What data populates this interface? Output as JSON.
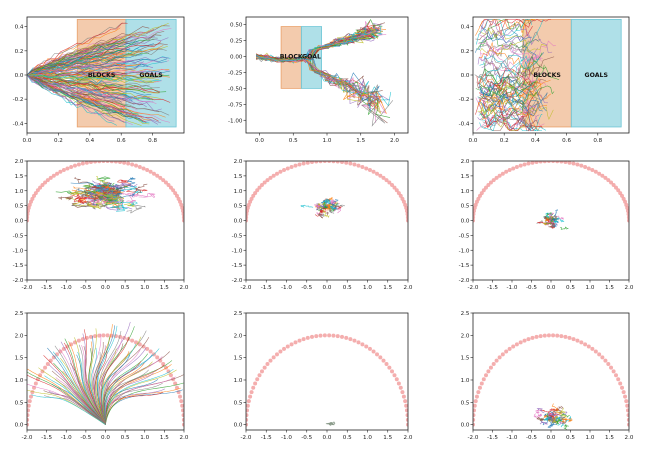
{
  "colors": {
    "blocks_zone": "#e9a06a",
    "goals_zone": "#6ec6d6",
    "target_markers": "#f2a0a0",
    "trajectory_palette": [
      "#1f77b4",
      "#ff7f0e",
      "#2ca02c",
      "#d62728",
      "#9467bd",
      "#8c564b",
      "#e377c2",
      "#7f7f7f",
      "#bcbd22",
      "#17becf"
    ],
    "collapsed_cluster": "#8a9a8a"
  },
  "chart_data": [
    {
      "id": "r1c1",
      "type": "line",
      "style": "fan",
      "xlim": [
        0.0,
        1.0
      ],
      "ylim": [
        -0.48,
        0.48
      ],
      "xticks": [
        "0.0",
        "0.2",
        "0.4",
        "0.6",
        "0.8"
      ],
      "xtick_values": [
        0,
        0.2,
        0.4,
        0.6,
        0.8
      ],
      "yticks": [
        "-0.4",
        "-0.2",
        "0.0",
        "0.2",
        "0.4"
      ],
      "ytick_values": [
        -0.4,
        -0.2,
        0,
        0.2,
        0.4
      ],
      "zones": [
        {
          "label": "BLOCKS",
          "x": [
            0.32,
            0.63
          ],
          "y": [
            -0.43,
            0.46
          ],
          "color": "blocks_zone"
        },
        {
          "label": "GOALS",
          "x": [
            0.63,
            0.95
          ],
          "y": [
            -0.43,
            0.46
          ],
          "color": "goals_zone"
        }
      ],
      "trajectories": {
        "count": 150,
        "start": [
          0.0,
          0.0
        ],
        "end_x_range": [
          0.55,
          0.92
        ],
        "end_y_range": [
          -0.42,
          0.44
        ]
      }
    },
    {
      "id": "r1c2",
      "type": "line",
      "style": "paths",
      "xlim": [
        -0.2,
        2.2
      ],
      "ylim": [
        -1.2,
        0.62
      ],
      "xticks": [
        "0.0",
        "0.5",
        "1.0",
        "1.5",
        "2.0"
      ],
      "xtick_values": [
        0,
        0.5,
        1,
        1.5,
        2
      ],
      "yticks": [
        "-1.00",
        "-0.75",
        "-0.50",
        "-0.25",
        "0.00",
        "0.25",
        "0.50"
      ],
      "ytick_values": [
        -1,
        -0.75,
        -0.5,
        -0.25,
        0,
        0.25,
        0.5
      ],
      "zones": [
        {
          "label": "BLOCK",
          "x": [
            0.32,
            0.62
          ],
          "y": [
            -0.5,
            0.47
          ],
          "color": "blocks_zone"
        },
        {
          "label": "GOAL",
          "x": [
            0.62,
            0.92
          ],
          "y": [
            -0.5,
            0.47
          ],
          "color": "goals_zone"
        }
      ],
      "trajectories": {
        "count": 60
      }
    },
    {
      "id": "r1c3",
      "type": "line",
      "style": "tangle",
      "xlim": [
        0.0,
        1.0
      ],
      "ylim": [
        -0.48,
        0.48
      ],
      "xticks": [
        "0.0",
        "0.2",
        "0.4",
        "0.6",
        "0.8"
      ],
      "xtick_values": [
        0,
        0.2,
        0.4,
        0.6,
        0.8
      ],
      "yticks": [
        "-0.4",
        "-0.2",
        "0.0",
        "0.2",
        "0.4"
      ],
      "ytick_values": [
        -0.4,
        -0.2,
        0,
        0.2,
        0.4
      ],
      "zones": [
        {
          "label": "BLOCKS",
          "x": [
            0.32,
            0.63
          ],
          "y": [
            -0.43,
            0.46
          ],
          "color": "blocks_zone"
        },
        {
          "label": "GOALS",
          "x": [
            0.63,
            0.95
          ],
          "y": [
            -0.43,
            0.46
          ],
          "color": "goals_zone"
        }
      ],
      "trajectories": {
        "count": 80
      }
    },
    {
      "id": "r2c1",
      "type": "line",
      "style": "cloud",
      "xlim": [
        -2.0,
        2.0
      ],
      "ylim": [
        -2.0,
        2.0
      ],
      "xticks": [
        "-2.0",
        "-1.5",
        "-1.0",
        "-0.5",
        "0.0",
        "0.5",
        "1.0",
        "1.5",
        "2.0"
      ],
      "xtick_values": [
        -2,
        -1.5,
        -1,
        -0.5,
        0,
        0.5,
        1,
        1.5,
        2
      ],
      "yticks": [
        "-2.0",
        "-1.5",
        "-1.0",
        "-0.5",
        "0.0",
        "0.5",
        "1.0",
        "1.5",
        "2.0"
      ],
      "ytick_values": [
        -2,
        -1.5,
        -1,
        -0.5,
        0,
        0.5,
        1,
        1.5,
        2
      ],
      "arc": {
        "radius": 2.0,
        "center": [
          0.0,
          0.0
        ],
        "points": 60
      },
      "cluster": {
        "center": [
          0.0,
          0.8
        ],
        "spread": [
          0.75,
          0.35
        ],
        "count": 120
      }
    },
    {
      "id": "r2c2",
      "type": "line",
      "style": "cloud",
      "xlim": [
        -2.0,
        2.0
      ],
      "ylim": [
        -2.0,
        2.0
      ],
      "xticks": [
        "-2.0",
        "-1.5",
        "-1.0",
        "-0.5",
        "0.0",
        "0.5",
        "1.0",
        "1.5",
        "2.0"
      ],
      "xtick_values": [
        -2,
        -1.5,
        -1,
        -0.5,
        0,
        0.5,
        1,
        1.5,
        2
      ],
      "yticks": [
        "-2.0",
        "-1.5",
        "-1.0",
        "-0.5",
        "0.0",
        "0.5",
        "1.0",
        "1.5",
        "2.0"
      ],
      "ytick_values": [
        -2,
        -1.5,
        -1,
        -0.5,
        0,
        0.5,
        1,
        1.5,
        2
      ],
      "arc": {
        "radius": 2.0,
        "center": [
          0.0,
          0.0
        ],
        "points": 60
      },
      "cluster": {
        "center": [
          0.0,
          0.45
        ],
        "spread": [
          0.25,
          0.25
        ],
        "count": 60
      }
    },
    {
      "id": "r2c3",
      "type": "line",
      "style": "cloud",
      "xlim": [
        -2.0,
        2.0
      ],
      "ylim": [
        -2.0,
        2.0
      ],
      "xticks": [
        "-2.0",
        "-1.5",
        "-1.0",
        "-0.5",
        "0.0",
        "0.5",
        "1.0",
        "1.5",
        "2.0"
      ],
      "xtick_values": [
        -2,
        -1.5,
        -1,
        -0.5,
        0,
        0.5,
        1,
        1.5,
        2
      ],
      "yticks": [
        "-2.0",
        "-1.5",
        "-1.0",
        "-0.5",
        "0.0",
        "0.5",
        "1.0",
        "1.5",
        "2.0"
      ],
      "ytick_values": [
        -2,
        -1.5,
        -1,
        -0.5,
        0,
        0.5,
        1,
        1.5,
        2
      ],
      "arc": {
        "radius": 2.0,
        "center": [
          0.0,
          0.0
        ],
        "points": 60
      },
      "cluster": {
        "center": [
          0.0,
          0.0
        ],
        "spread": [
          0.2,
          0.18
        ],
        "count": 60
      }
    },
    {
      "id": "r3c1",
      "type": "line",
      "style": "loops",
      "xlim": [
        -2.0,
        2.0
      ],
      "ylim": [
        -0.12,
        2.5
      ],
      "xticks": [
        "-2.0",
        "-1.5",
        "-1.0",
        "-0.5",
        "0.0",
        "0.5",
        "1.0",
        "1.5",
        "2.0"
      ],
      "xtick_values": [
        -2,
        -1.5,
        -1,
        -0.5,
        0,
        0.5,
        1,
        1.5,
        2
      ],
      "yticks": [
        "0.0",
        "0.5",
        "1.0",
        "1.5",
        "2.0",
        "2.5"
      ],
      "ytick_values": [
        0,
        0.5,
        1,
        1.5,
        2,
        2.5
      ],
      "arc": {
        "radius": 2.0,
        "center": [
          0.0,
          0.0
        ],
        "points": 60
      },
      "trajectories": {
        "count": 90
      }
    },
    {
      "id": "r3c2",
      "type": "line",
      "style": "cloud",
      "xlim": [
        -2.0,
        2.0
      ],
      "ylim": [
        -0.12,
        2.5
      ],
      "xticks": [
        "-2.0",
        "-1.5",
        "-1.0",
        "-0.5",
        "0.0",
        "0.5",
        "1.0",
        "1.5",
        "2.0"
      ],
      "xtick_values": [
        -2,
        -1.5,
        -1,
        -0.5,
        0,
        0.5,
        1,
        1.5,
        2
      ],
      "yticks": [
        "0.0",
        "0.5",
        "1.0",
        "1.5",
        "2.0",
        "2.5"
      ],
      "ytick_values": [
        0,
        0.5,
        1,
        1.5,
        2,
        2.5
      ],
      "arc": {
        "radius": 2.0,
        "center": [
          0.0,
          0.0
        ],
        "points": 60
      },
      "cluster": {
        "center": [
          0.1,
          0.02
        ],
        "spread": [
          0.08,
          0.03
        ],
        "count": 15,
        "collapsed": true
      }
    },
    {
      "id": "r3c3",
      "type": "line",
      "style": "cloud",
      "xlim": [
        -2.0,
        2.0
      ],
      "ylim": [
        -0.12,
        2.5
      ],
      "xticks": [
        "-2.0",
        "-1.5",
        "-1.0",
        "-0.5",
        "0.0",
        "0.5",
        "1.0",
        "1.5",
        "2.0"
      ],
      "xtick_values": [
        -2,
        -1.5,
        -1,
        -0.5,
        0,
        0.5,
        1,
        1.5,
        2
      ],
      "yticks": [
        "0.0",
        "0.5",
        "1.0",
        "1.5",
        "2.0",
        "2.5"
      ],
      "ytick_values": [
        0,
        0.5,
        1,
        1.5,
        2,
        2.5
      ],
      "arc": {
        "radius": 2.0,
        "center": [
          0.0,
          0.0
        ],
        "points": 60
      },
      "cluster": {
        "center": [
          0.05,
          0.15
        ],
        "spread": [
          0.3,
          0.17
        ],
        "count": 60
      }
    }
  ]
}
